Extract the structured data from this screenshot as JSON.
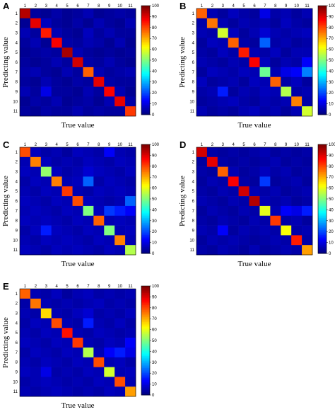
{
  "panels": [
    {
      "letter": "A"
    },
    {
      "letter": "B"
    },
    {
      "letter": "C"
    },
    {
      "letter": "D"
    },
    {
      "letter": "E"
    }
  ],
  "chart_data": [
    {
      "type": "heatmap",
      "panel": "A",
      "xlabel": "True value",
      "ylabel": "Predicting value",
      "x_categories": [
        "1",
        "2",
        "3",
        "4",
        "5",
        "6",
        "7",
        "8",
        "9",
        "10",
        "11"
      ],
      "y_categories": [
        "1",
        "2",
        "3",
        "4",
        "5",
        "6",
        "7",
        "8",
        "9",
        "10",
        "11"
      ],
      "colorbar": {
        "min": 0,
        "max": 100,
        "ticks": [
          0,
          10,
          20,
          30,
          40,
          50,
          60,
          70,
          80,
          90,
          100
        ],
        "colormap": "jet"
      },
      "values": [
        [
          95,
          3,
          2,
          4,
          2,
          3,
          5,
          2,
          3,
          4,
          3
        ],
        [
          2,
          90,
          6,
          3,
          2,
          4,
          2,
          5,
          3,
          2,
          5
        ],
        [
          5,
          3,
          85,
          5,
          3,
          2,
          6,
          3,
          5,
          3,
          3
        ],
        [
          3,
          5,
          2,
          88,
          4,
          3,
          5,
          4,
          2,
          5,
          2
        ],
        [
          2,
          3,
          4,
          3,
          96,
          5,
          3,
          2,
          3,
          2,
          3
        ],
        [
          3,
          2,
          3,
          5,
          3,
          92,
          4,
          3,
          5,
          3,
          2
        ],
        [
          4,
          5,
          3,
          2,
          5,
          3,
          78,
          5,
          3,
          4,
          5
        ],
        [
          3,
          2,
          5,
          3,
          2,
          4,
          3,
          90,
          4,
          3,
          3
        ],
        [
          5,
          3,
          10,
          3,
          3,
          2,
          5,
          3,
          88,
          5,
          2
        ],
        [
          2,
          4,
          3,
          5,
          2,
          3,
          4,
          2,
          5,
          90,
          4
        ],
        [
          3,
          2,
          4,
          3,
          3,
          5,
          3,
          4,
          3,
          3,
          82
        ]
      ]
    },
    {
      "type": "heatmap",
      "panel": "B",
      "xlabel": "True value",
      "ylabel": "Predicting value",
      "x_categories": [
        "1",
        "2",
        "3",
        "4",
        "5",
        "6",
        "7",
        "8",
        "9",
        "10",
        "11"
      ],
      "y_categories": [
        "1",
        "2",
        "3",
        "4",
        "5",
        "6",
        "7",
        "8",
        "9",
        "10",
        "11"
      ],
      "colorbar": {
        "min": 0,
        "max": 100,
        "ticks": [
          0,
          10,
          20,
          30,
          40,
          50,
          60,
          70,
          80,
          90,
          100
        ],
        "colormap": "jet"
      },
      "values": [
        [
          78,
          5,
          3,
          6,
          4,
          3,
          10,
          4,
          5,
          3,
          5
        ],
        [
          4,
          76,
          5,
          3,
          5,
          4,
          5,
          3,
          6,
          4,
          3
        ],
        [
          5,
          4,
          58,
          6,
          3,
          5,
          8,
          5,
          4,
          5,
          6
        ],
        [
          3,
          6,
          5,
          78,
          4,
          3,
          22,
          4,
          5,
          3,
          4
        ],
        [
          4,
          3,
          6,
          4,
          85,
          5,
          4,
          6,
          3,
          5,
          5
        ],
        [
          5,
          4,
          3,
          5,
          4,
          88,
          6,
          3,
          5,
          4,
          12
        ],
        [
          3,
          6,
          5,
          4,
          6,
          5,
          48,
          5,
          10,
          12,
          25
        ],
        [
          6,
          3,
          4,
          5,
          3,
          6,
          5,
          78,
          4,
          6,
          3
        ],
        [
          4,
          5,
          15,
          3,
          5,
          4,
          6,
          5,
          55,
          4,
          5
        ],
        [
          3,
          4,
          5,
          6,
          4,
          3,
          5,
          4,
          5,
          75,
          4
        ],
        [
          5,
          3,
          4,
          3,
          5,
          6,
          4,
          5,
          3,
          5,
          58
        ]
      ]
    },
    {
      "type": "heatmap",
      "panel": "C",
      "xlabel": "True value",
      "ylabel": "Predicting value",
      "x_categories": [
        "1",
        "2",
        "3",
        "4",
        "5",
        "6",
        "7",
        "8",
        "9",
        "10",
        "11"
      ],
      "y_categories": [
        "1",
        "2",
        "3",
        "4",
        "5",
        "6",
        "7",
        "8",
        "9",
        "10",
        "11"
      ],
      "colorbar": {
        "min": 0,
        "max": 100,
        "ticks": [
          0,
          10,
          20,
          30,
          40,
          50,
          60,
          70,
          80,
          90,
          100
        ],
        "colormap": "jet"
      },
      "values": [
        [
          80,
          6,
          4,
          5,
          3,
          6,
          5,
          4,
          12,
          5,
          4
        ],
        [
          5,
          75,
          6,
          4,
          5,
          4,
          6,
          5,
          4,
          6,
          5
        ],
        [
          6,
          5,
          52,
          6,
          4,
          5,
          8,
          6,
          5,
          4,
          6
        ],
        [
          4,
          6,
          5,
          75,
          5,
          6,
          22,
          4,
          6,
          5,
          4
        ],
        [
          5,
          4,
          6,
          5,
          82,
          5,
          4,
          6,
          5,
          6,
          5
        ],
        [
          6,
          5,
          4,
          6,
          5,
          80,
          6,
          5,
          4,
          5,
          22
        ],
        [
          5,
          6,
          5,
          4,
          6,
          5,
          50,
          6,
          18,
          15,
          12
        ],
        [
          6,
          5,
          6,
          5,
          4,
          6,
          5,
          78,
          5,
          6,
          5
        ],
        [
          4,
          6,
          15,
          6,
          5,
          4,
          6,
          5,
          50,
          5,
          6
        ],
        [
          5,
          4,
          6,
          5,
          6,
          5,
          4,
          6,
          5,
          75,
          5
        ],
        [
          6,
          5,
          4,
          6,
          5,
          6,
          5,
          4,
          6,
          5,
          55
        ]
      ]
    },
    {
      "type": "heatmap",
      "panel": "D",
      "xlabel": "True value",
      "ylabel": "Predicting value",
      "x_categories": [
        "1",
        "2",
        "3",
        "4",
        "5",
        "6",
        "7",
        "8",
        "9",
        "10",
        "11"
      ],
      "y_categories": [
        "1",
        "2",
        "3",
        "4",
        "5",
        "6",
        "7",
        "8",
        "9",
        "10",
        "11"
      ],
      "colorbar": {
        "min": 0,
        "max": 100,
        "ticks": [
          0,
          10,
          20,
          30,
          40,
          50,
          60,
          70,
          80,
          90,
          100
        ],
        "colormap": "jet"
      },
      "values": [
        [
          92,
          4,
          3,
          4,
          3,
          4,
          5,
          3,
          4,
          3,
          4
        ],
        [
          3,
          90,
          4,
          3,
          4,
          3,
          4,
          5,
          3,
          4,
          3
        ],
        [
          4,
          3,
          78,
          5,
          3,
          4,
          6,
          4,
          5,
          3,
          4
        ],
        [
          3,
          5,
          4,
          88,
          4,
          3,
          18,
          3,
          4,
          5,
          3
        ],
        [
          4,
          3,
          5,
          4,
          92,
          5,
          4,
          5,
          3,
          4,
          5
        ],
        [
          5,
          4,
          3,
          5,
          4,
          95,
          5,
          4,
          5,
          3,
          4
        ],
        [
          3,
          5,
          4,
          3,
          5,
          4,
          60,
          5,
          12,
          10,
          15
        ],
        [
          4,
          3,
          5,
          4,
          3,
          5,
          4,
          82,
          4,
          5,
          3
        ],
        [
          5,
          4,
          12,
          3,
          5,
          4,
          5,
          4,
          62,
          4,
          5
        ],
        [
          3,
          5,
          4,
          5,
          4,
          3,
          4,
          5,
          4,
          85,
          4
        ],
        [
          4,
          3,
          5,
          4,
          3,
          5,
          3,
          4,
          5,
          4,
          72
        ]
      ]
    },
    {
      "type": "heatmap",
      "panel": "E",
      "xlabel": "True value",
      "ylabel": "Predicting value",
      "x_categories": [
        "1",
        "2",
        "3",
        "4",
        "5",
        "6",
        "7",
        "8",
        "9",
        "10",
        "11"
      ],
      "y_categories": [
        "1",
        "2",
        "3",
        "4",
        "5",
        "6",
        "7",
        "8",
        "9",
        "10",
        "11"
      ],
      "colorbar": {
        "min": 0,
        "max": 100,
        "ticks": [
          0,
          10,
          20,
          30,
          40,
          50,
          60,
          70,
          80,
          90,
          100
        ],
        "colormap": "jet"
      },
      "values": [
        [
          78,
          5,
          4,
          6,
          3,
          5,
          6,
          4,
          5,
          4,
          5
        ],
        [
          4,
          76,
          5,
          4,
          5,
          4,
          5,
          6,
          4,
          5,
          4
        ],
        [
          5,
          4,
          66,
          5,
          4,
          6,
          8,
          4,
          5,
          4,
          6
        ],
        [
          4,
          6,
          5,
          80,
          5,
          4,
          15,
          5,
          4,
          6,
          4
        ],
        [
          5,
          4,
          6,
          5,
          86,
          5,
          4,
          6,
          5,
          4,
          5
        ],
        [
          6,
          5,
          4,
          6,
          5,
          82,
          5,
          4,
          6,
          5,
          12
        ],
        [
          4,
          6,
          5,
          4,
          6,
          5,
          55,
          5,
          12,
          15,
          10
        ],
        [
          5,
          4,
          6,
          5,
          4,
          6,
          5,
          80,
          5,
          6,
          4
        ],
        [
          6,
          5,
          10,
          4,
          5,
          4,
          6,
          5,
          58,
          5,
          6
        ],
        [
          4,
          5,
          6,
          5,
          4,
          5,
          4,
          6,
          5,
          80,
          5
        ],
        [
          5,
          4,
          5,
          6,
          5,
          4,
          5,
          4,
          6,
          5,
          72
        ]
      ]
    }
  ]
}
